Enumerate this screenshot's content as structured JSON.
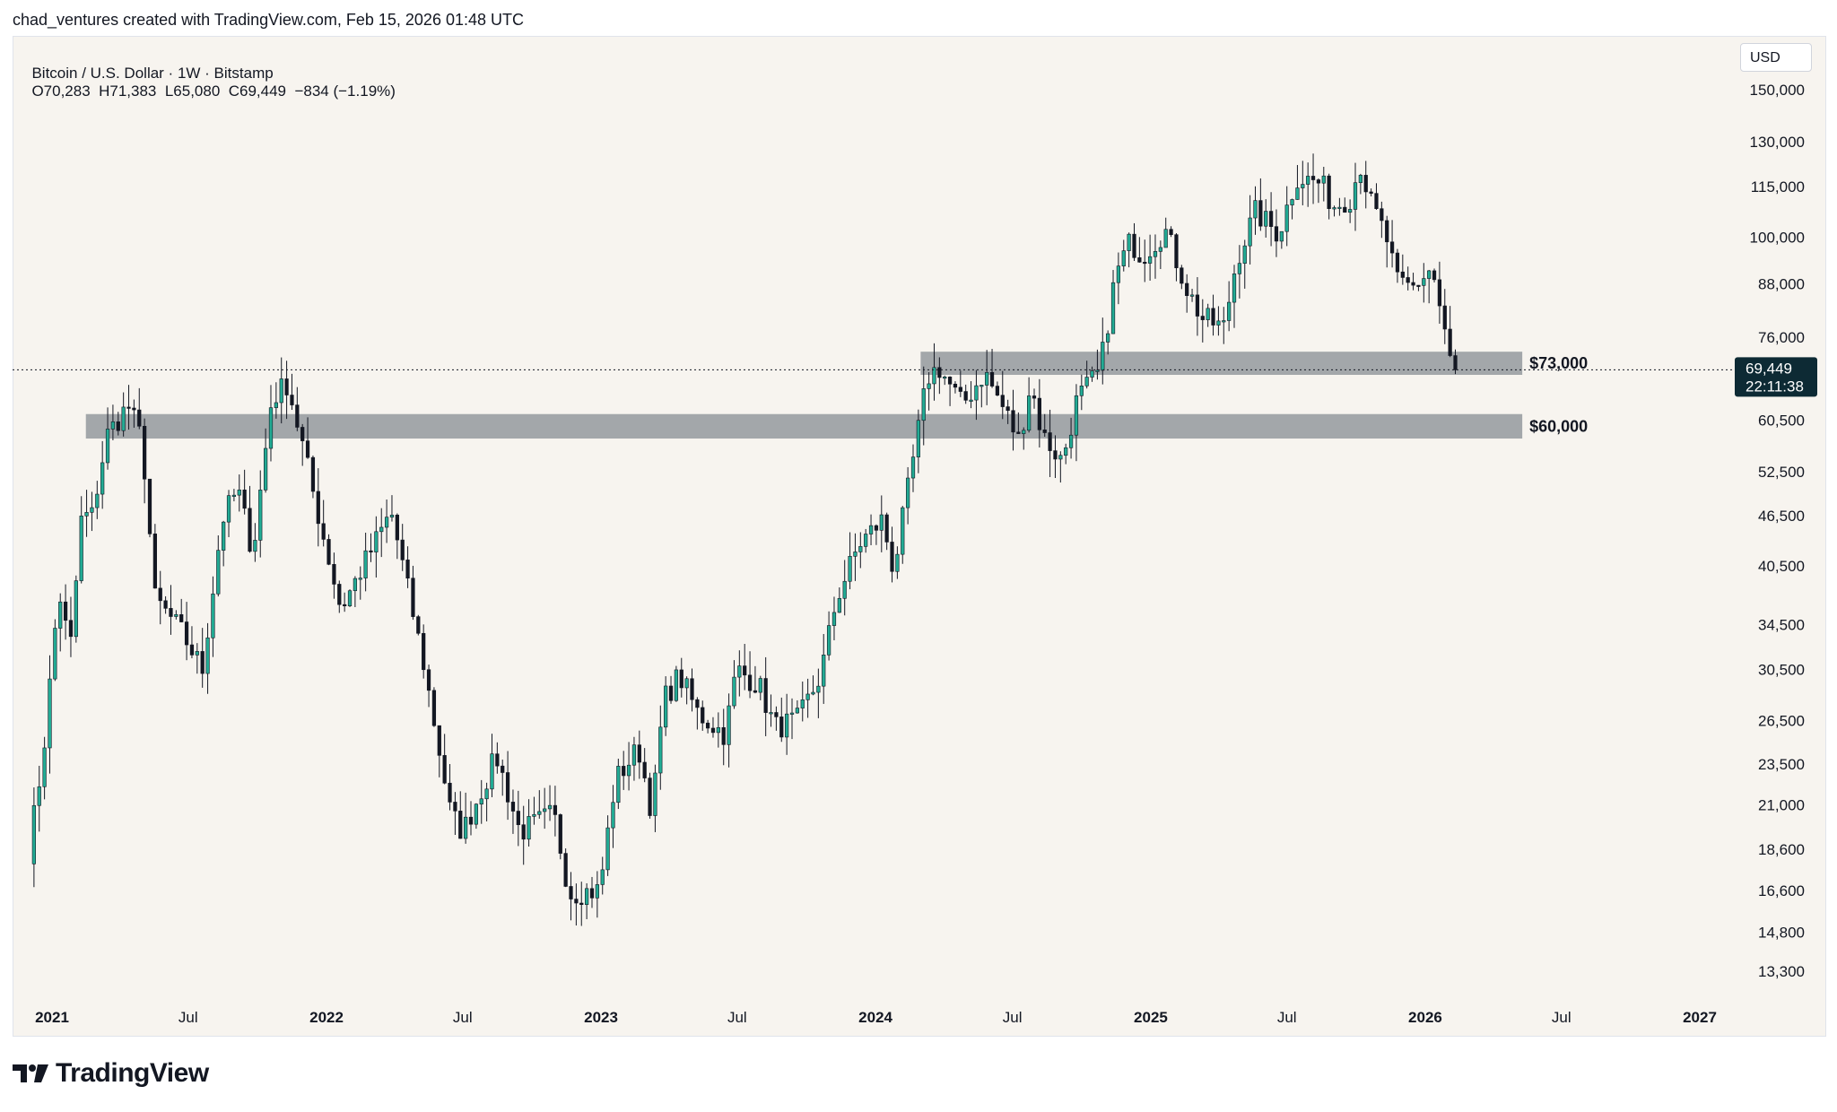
{
  "header": {
    "created_by": "chad_ventures created with TradingView.com, Feb 15, 2026 01:48 UTC"
  },
  "legend": {
    "symbol": "Bitcoin / U.S. Dollar · 1W · Bitstamp",
    "ohlc": "O70,283  H71,383  L65,080  C69,449  −834 (−1.19%)"
  },
  "currency_button": {
    "label": "USD"
  },
  "price_tag": {
    "price": "69,449",
    "countdown": "22:11:38",
    "value": 69449,
    "color": "#0d2a34"
  },
  "footer": {
    "brand": "TradingView"
  },
  "colors": {
    "up": "#22ab94",
    "up_body": "#1f9e7a",
    "down": "#131722",
    "zone": "#a3a7aa",
    "background": "#f7f4ef"
  },
  "chart_data": {
    "type": "candlestick",
    "scale": "log",
    "ylim": [
      12000,
      160000
    ],
    "y_ticks": [
      {
        "value": 150000,
        "label": "150,000"
      },
      {
        "value": 130000,
        "label": "130,000"
      },
      {
        "value": 115000,
        "label": "115,000"
      },
      {
        "value": 100000,
        "label": "100,000"
      },
      {
        "value": 88000,
        "label": "88,000"
      },
      {
        "value": 76000,
        "label": "76,000"
      },
      {
        "value": 60500,
        "label": "60,500"
      },
      {
        "value": 52500,
        "label": "52,500"
      },
      {
        "value": 46500,
        "label": "46,500"
      },
      {
        "value": 40500,
        "label": "40,500"
      },
      {
        "value": 34500,
        "label": "34,500"
      },
      {
        "value": 30500,
        "label": "30,500"
      },
      {
        "value": 26500,
        "label": "26,500"
      },
      {
        "value": 23500,
        "label": "23,500"
      },
      {
        "value": 21000,
        "label": "21,000"
      },
      {
        "value": 18600,
        "label": "18,600"
      },
      {
        "value": 16600,
        "label": "16,600"
      },
      {
        "value": 14800,
        "label": "14,800"
      },
      {
        "value": 13300,
        "label": "13,300"
      }
    ],
    "x_ticks": [
      {
        "date": "2021-01-01",
        "label": "2021",
        "bold": true
      },
      {
        "date": "2021-07-01",
        "label": "Jul",
        "bold": false
      },
      {
        "date": "2022-01-01",
        "label": "2022",
        "bold": true
      },
      {
        "date": "2022-07-01",
        "label": "Jul",
        "bold": false
      },
      {
        "date": "2023-01-01",
        "label": "2023",
        "bold": true
      },
      {
        "date": "2023-07-01",
        "label": "Jul",
        "bold": false
      },
      {
        "date": "2024-01-01",
        "label": "2024",
        "bold": true
      },
      {
        "date": "2024-07-01",
        "label": "Jul",
        "bold": false
      },
      {
        "date": "2025-01-01",
        "label": "2025",
        "bold": true
      },
      {
        "date": "2025-07-01",
        "label": "Jul",
        "bold": false
      },
      {
        "date": "2026-01-01",
        "label": "2026",
        "bold": true
      },
      {
        "date": "2026-07-01",
        "label": "Jul",
        "bold": false
      },
      {
        "date": "2027-01-01",
        "label": "2027",
        "bold": true
      }
    ],
    "zones": [
      {
        "label": "$73,000",
        "top": 73000,
        "bottom": 68500,
        "start": "2024-03-01",
        "end": "2026-05-10"
      },
      {
        "label": "$60,000",
        "top": 61500,
        "bottom": 57500,
        "start": "2021-02-15",
        "end": "2026-05-10"
      }
    ],
    "current_price_line": 69449,
    "series": [
      {
        "date": "2020-12-01",
        "close": 18500
      },
      {
        "date": "2020-12-20",
        "close": 24000
      },
      {
        "date": "2021-01-10",
        "close": 38000
      },
      {
        "date": "2021-01-25",
        "close": 32000
      },
      {
        "date": "2021-02-10",
        "close": 47000
      },
      {
        "date": "2021-02-22",
        "close": 46000
      },
      {
        "date": "2021-03-15",
        "close": 58000
      },
      {
        "date": "2021-04-12",
        "close": 63000
      },
      {
        "date": "2021-05-01",
        "close": 57000
      },
      {
        "date": "2021-05-18",
        "close": 37000
      },
      {
        "date": "2021-06-20",
        "close": 34000
      },
      {
        "date": "2021-07-20",
        "close": 30500
      },
      {
        "date": "2021-08-15",
        "close": 46000
      },
      {
        "date": "2021-09-05",
        "close": 50000
      },
      {
        "date": "2021-09-25",
        "close": 42000
      },
      {
        "date": "2021-10-20",
        "close": 64000
      },
      {
        "date": "2021-11-10",
        "close": 67000
      },
      {
        "date": "2021-12-01",
        "close": 56000
      },
      {
        "date": "2021-12-20",
        "close": 47000
      },
      {
        "date": "2022-01-20",
        "close": 36000
      },
      {
        "date": "2022-03-28",
        "close": 47000
      },
      {
        "date": "2022-05-10",
        "close": 31000
      },
      {
        "date": "2022-06-15",
        "close": 20500
      },
      {
        "date": "2022-07-01",
        "close": 19500
      },
      {
        "date": "2022-08-15",
        "close": 24000
      },
      {
        "date": "2022-09-15",
        "close": 19500
      },
      {
        "date": "2022-10-30",
        "close": 20500
      },
      {
        "date": "2022-11-20",
        "close": 16500
      },
      {
        "date": "2022-12-30",
        "close": 16600
      },
      {
        "date": "2023-01-20",
        "close": 22500
      },
      {
        "date": "2023-02-20",
        "close": 24500
      },
      {
        "date": "2023-03-10",
        "close": 20500
      },
      {
        "date": "2023-03-25",
        "close": 28000
      },
      {
        "date": "2023-04-15",
        "close": 30000
      },
      {
        "date": "2023-05-10",
        "close": 27000
      },
      {
        "date": "2023-06-15",
        "close": 25500
      },
      {
        "date": "2023-06-30",
        "close": 30500
      },
      {
        "date": "2023-07-30",
        "close": 29200
      },
      {
        "date": "2023-08-20",
        "close": 26000
      },
      {
        "date": "2023-09-20",
        "close": 26500
      },
      {
        "date": "2023-10-20",
        "close": 30000
      },
      {
        "date": "2023-11-10",
        "close": 37000
      },
      {
        "date": "2023-12-10",
        "close": 43000
      },
      {
        "date": "2024-01-10",
        "close": 46000
      },
      {
        "date": "2024-01-25",
        "close": 40000
      },
      {
        "date": "2024-02-15",
        "close": 51000
      },
      {
        "date": "2024-03-10",
        "close": 68000
      },
      {
        "date": "2024-03-25",
        "close": 70000
      },
      {
        "date": "2024-04-25",
        "close": 63000
      },
      {
        "date": "2024-05-25",
        "close": 69000
      },
      {
        "date": "2024-06-25",
        "close": 61000
      },
      {
        "date": "2024-07-10",
        "close": 57000
      },
      {
        "date": "2024-07-25",
        "close": 67000
      },
      {
        "date": "2024-08-10",
        "close": 58000
      },
      {
        "date": "2024-09-05",
        "close": 54000
      },
      {
        "date": "2024-09-25",
        "close": 64000
      },
      {
        "date": "2024-10-25",
        "close": 69000
      },
      {
        "date": "2024-11-15",
        "close": 90000
      },
      {
        "date": "2024-12-05",
        "close": 99000
      },
      {
        "date": "2024-12-20",
        "close": 95000
      },
      {
        "date": "2025-01-20",
        "close": 102000
      },
      {
        "date": "2025-02-20",
        "close": 86000
      },
      {
        "date": "2025-03-10",
        "close": 80000
      },
      {
        "date": "2025-04-08",
        "close": 78000
      },
      {
        "date": "2025-04-25",
        "close": 94000
      },
      {
        "date": "2025-05-20",
        "close": 107000
      },
      {
        "date": "2025-06-20",
        "close": 101000
      },
      {
        "date": "2025-07-14",
        "close": 118000
      },
      {
        "date": "2025-08-15",
        "close": 116000
      },
      {
        "date": "2025-09-01",
        "close": 109000
      },
      {
        "date": "2025-09-25",
        "close": 112000
      },
      {
        "date": "2025-10-06",
        "close": 123000
      },
      {
        "date": "2025-10-20",
        "close": 110000
      },
      {
        "date": "2025-11-10",
        "close": 100000
      },
      {
        "date": "2025-11-25",
        "close": 88000
      },
      {
        "date": "2025-12-15",
        "close": 87000
      },
      {
        "date": "2026-01-10",
        "close": 92000
      },
      {
        "date": "2026-01-25",
        "close": 78000
      },
      {
        "date": "2026-02-05",
        "close": 70000
      },
      {
        "date": "2026-02-14",
        "close": 69449
      }
    ]
  }
}
